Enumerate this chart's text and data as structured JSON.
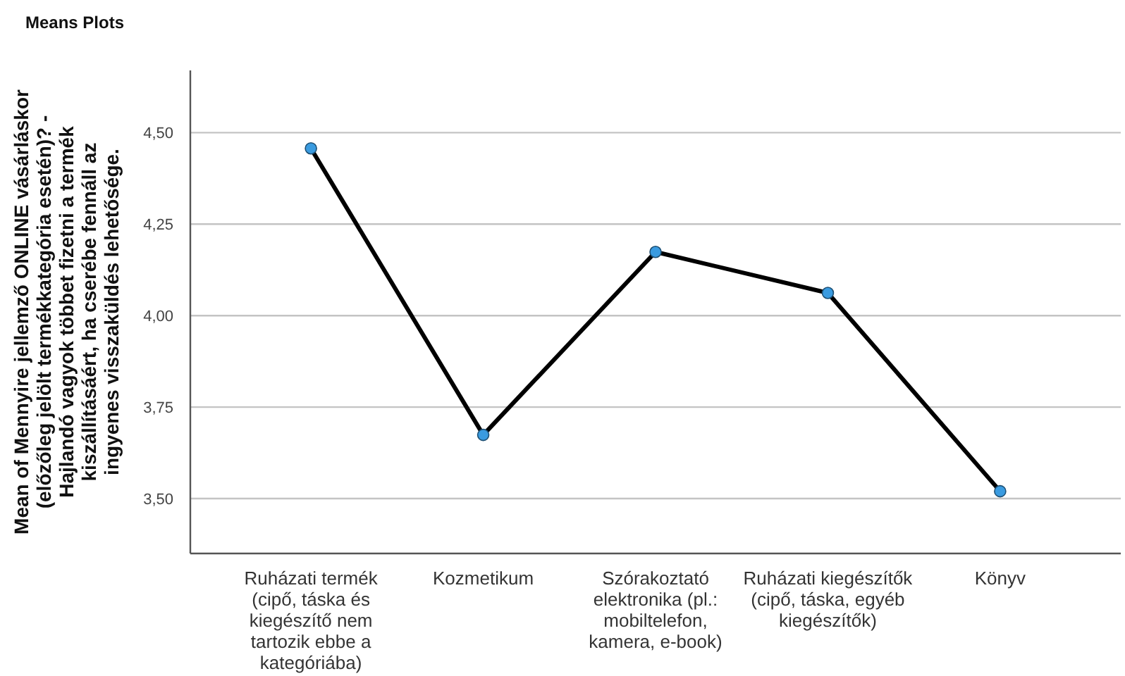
{
  "chart_data": {
    "type": "line",
    "title": "Means Plots",
    "ylabel": "Mean of Mennyire jellemző ONLINE vásárláskor (előzőleg jelölt termékkategória esetén)? - Hajlandó vagyok többet fizetni a termék kiszállításáért, ha cserébe fennáll az ingyenes visszaküldés lehetősége.",
    "categories": [
      "Ruházati termék (cipő, táska és kiegészítő nem tartozik ebbe a kategóriába)",
      "Kozmetikum",
      "Szórakoztató elektronika (pl.: mobiltelefon, kamera, e-book)",
      "Ruházati kiegészítők (cipő, táska, egyéb kiegészítők)",
      "Könyv"
    ],
    "series": [
      {
        "color": "#000000",
        "values": [
          4.457,
          3.674,
          4.174,
          4.062,
          3.52
        ]
      }
    ],
    "ylim": [
      3.35,
      4.67
    ],
    "yticks": [
      {
        "value": 3.5,
        "label": "3,50"
      },
      {
        "value": 3.75,
        "label": "3,75"
      },
      {
        "value": 4.0,
        "label": "4,00"
      },
      {
        "value": 4.25,
        "label": "4,25"
      },
      {
        "value": 4.5,
        "label": "4,50"
      }
    ],
    "grid": "y",
    "marker": "circle",
    "line_style": "solid"
  }
}
